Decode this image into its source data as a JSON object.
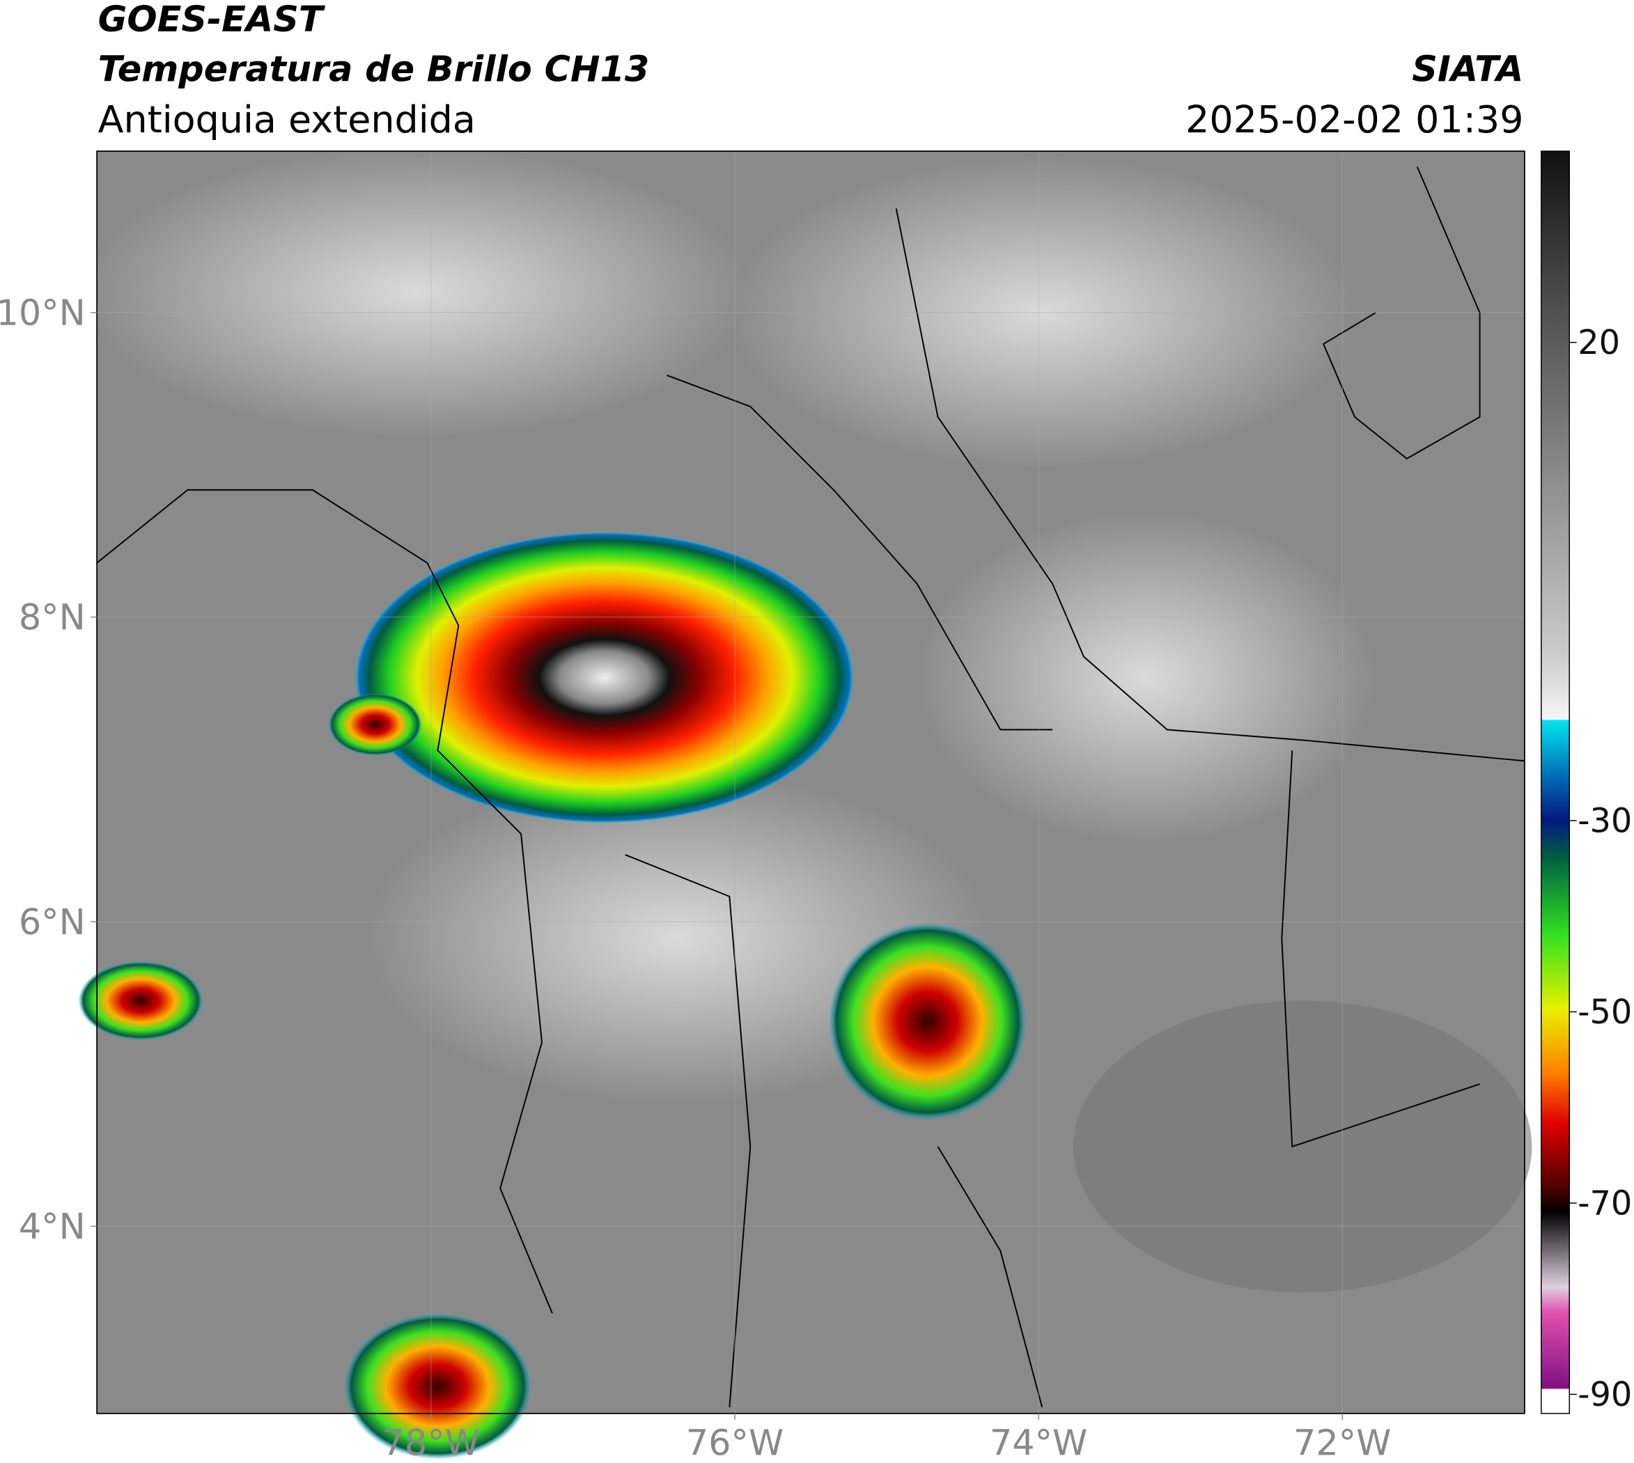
{
  "header": {
    "title": "GOES-EAST",
    "subtitle": "Temperatura de Brillo CH13",
    "region": "Antioquia extendida",
    "source": "SIATA",
    "datetime": "2025-02-02 01:39"
  },
  "map": {
    "xlim": [
      -80.2,
      -70.8
    ],
    "ylim": [
      2.77,
      11.06
    ],
    "xticks": [
      {
        "value": -78,
        "label": "78°W"
      },
      {
        "value": -76,
        "label": "76°W"
      },
      {
        "value": -74,
        "label": "74°W"
      },
      {
        "value": -72,
        "label": "72°W"
      }
    ],
    "yticks": [
      {
        "value": 4,
        "label": "4°N"
      },
      {
        "value": 6,
        "label": "6°N"
      },
      {
        "value": 8,
        "label": "8°N"
      },
      {
        "value": 10,
        "label": "10°N"
      }
    ],
    "grid": true
  },
  "colorbar": {
    "lim": [
      -92,
      40
    ],
    "ticks": [
      20,
      -30,
      -50,
      -70,
      -90
    ]
  }
}
